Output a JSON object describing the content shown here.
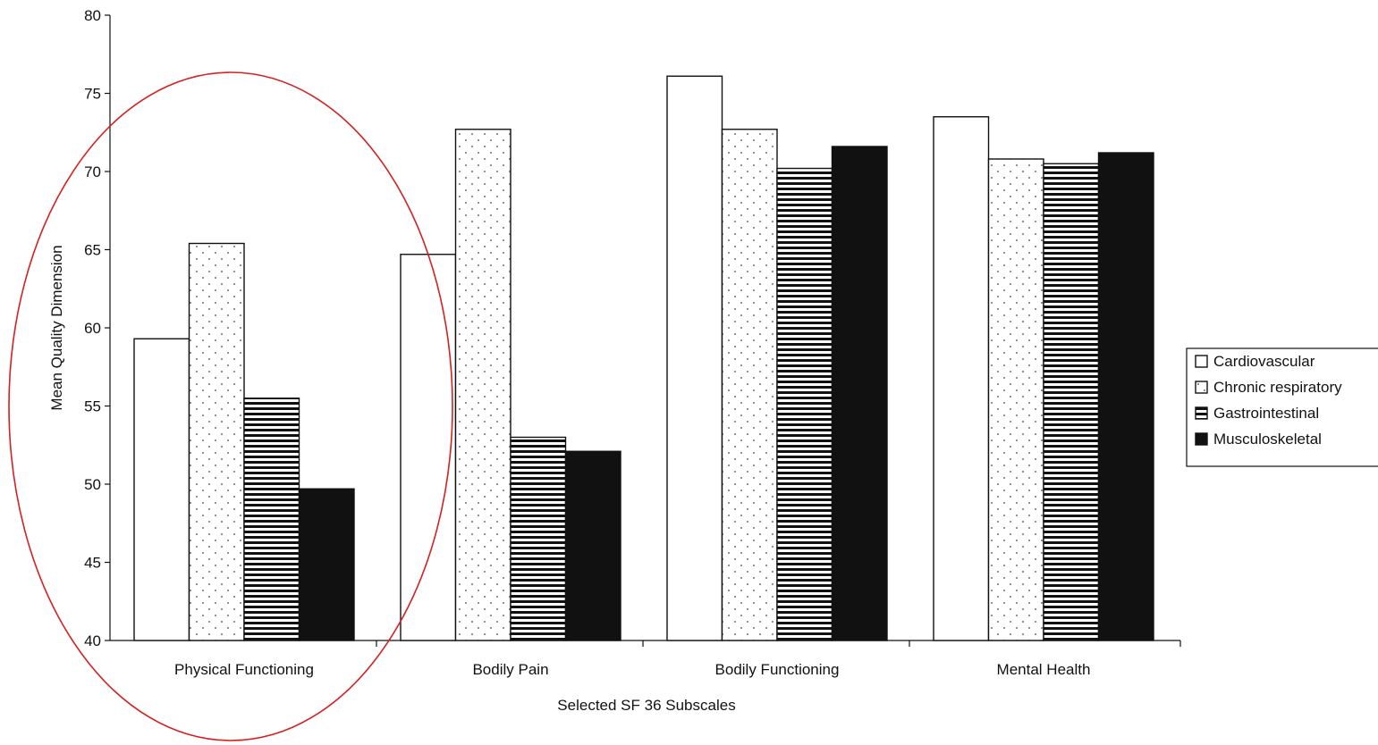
{
  "chart_data": {
    "type": "bar",
    "title": "",
    "xlabel": "Selected SF 36 Subscales",
    "ylabel": "Mean Quality Dimension",
    "ylim": [
      40,
      80
    ],
    "yticks": [
      40,
      45,
      50,
      55,
      60,
      65,
      70,
      75,
      80
    ],
    "categories": [
      "Physical Functioning",
      "Bodily Pain",
      "Bodily Functioning",
      "Mental Health"
    ],
    "series": [
      {
        "name": "Cardiovascular",
        "pattern": "blank",
        "values": [
          59.3,
          64.7,
          76.1,
          73.5
        ]
      },
      {
        "name": "Chronic respiratory",
        "pattern": "dots",
        "values": [
          65.4,
          72.7,
          72.7,
          70.8
        ]
      },
      {
        "name": "Gastrointestinal",
        "pattern": "horizontal-lines",
        "values": [
          55.5,
          53.0,
          70.2,
          70.5
        ]
      },
      {
        "name": "Musculoskeletal",
        "pattern": "solid",
        "values": [
          49.7,
          52.1,
          71.6,
          71.2
        ]
      }
    ],
    "legend_position": "right",
    "grid": false,
    "annotation": "red-ellipse-around-physical-functioning"
  },
  "colors": {
    "bar_outline": "#111111",
    "solid_fill": "#111111",
    "annotation": "#d42020"
  }
}
